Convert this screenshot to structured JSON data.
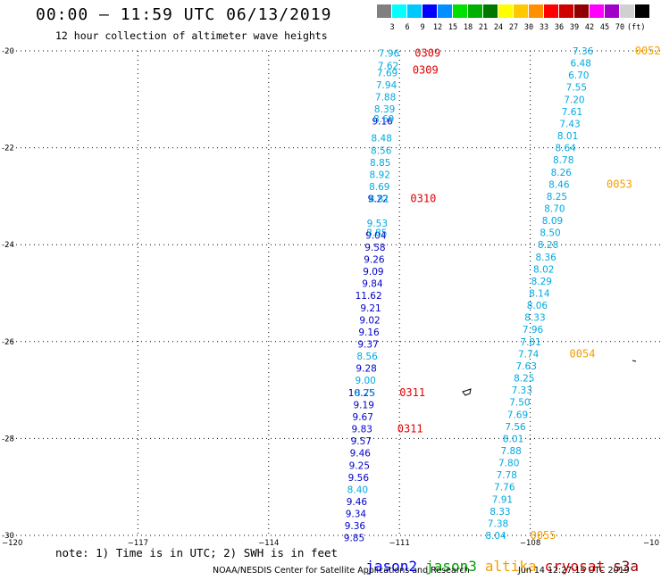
{
  "header": {
    "title": "00:00 – 11:59 UTC 06/13/2019",
    "subtitle": "12 hour collection of altimeter wave heights"
  },
  "color_scale": {
    "colors": [
      "#808080",
      "#00ffff",
      "#00c8ff",
      "#0000ff",
      "#0090ff",
      "#00e000",
      "#00b000",
      "#007800",
      "#ffff00",
      "#ffc800",
      "#ff9000",
      "#ff0000",
      "#d00000",
      "#900000",
      "#ff00ff",
      "#a000c8",
      "#d0d0d0",
      "#000000"
    ],
    "labels": [
      "3",
      "6",
      "9",
      "12",
      "15",
      "18",
      "21",
      "24",
      "27",
      "30",
      "33",
      "36",
      "39",
      "42",
      "45",
      "70",
      "(ft)"
    ]
  },
  "chart_data": {
    "type": "map",
    "xlim": [
      -120,
      -105
    ],
    "ylim": [
      -30,
      -20
    ],
    "x_ticks": [
      "−120",
      "−117",
      "−114",
      "−111",
      "−108",
      "−10"
    ],
    "y_ticks": [
      "-20",
      "-22",
      "-24",
      "-26",
      "-28",
      "-30"
    ],
    "grid": "dotted",
    "series": [
      {
        "name": "jason2",
        "color": "#0000c8",
        "points": [
          {
            "lon": -111.15,
            "lat": -21.45,
            "swh": "9.16"
          },
          {
            "lon": -111.25,
            "lat": -23.05,
            "swh": "9.22"
          },
          {
            "lon": -111.3,
            "lat": -23.8,
            "swh": "9.04"
          },
          {
            "lon": -111.32,
            "lat": -24.05,
            "swh": "9.58"
          },
          {
            "lon": -111.34,
            "lat": -24.3,
            "swh": "9.26"
          },
          {
            "lon": -111.36,
            "lat": -24.55,
            "swh": "9.09"
          },
          {
            "lon": -111.38,
            "lat": -24.8,
            "swh": "9.84"
          },
          {
            "lon": -111.4,
            "lat": -25.05,
            "swh": "11.62"
          },
          {
            "lon": -111.42,
            "lat": -25.3,
            "swh": "9.21"
          },
          {
            "lon": -111.44,
            "lat": -25.55,
            "swh": "9.02"
          },
          {
            "lon": -111.46,
            "lat": -25.8,
            "swh": "9.16"
          },
          {
            "lon": -111.48,
            "lat": -26.05,
            "swh": "9.37"
          },
          {
            "lon": -111.52,
            "lat": -26.55,
            "swh": "9.28"
          },
          {
            "lon": -111.56,
            "lat": -27.05,
            "swh": "10.25"
          },
          {
            "lon": -111.58,
            "lat": -27.3,
            "swh": "9.19"
          },
          {
            "lon": -111.6,
            "lat": -27.55,
            "swh": "9.67"
          },
          {
            "lon": -111.62,
            "lat": -27.8,
            "swh": "9.83"
          },
          {
            "lon": -111.64,
            "lat": -28.05,
            "swh": "9.57"
          },
          {
            "lon": -111.66,
            "lat": -28.3,
            "swh": "9.46"
          },
          {
            "lon": -111.68,
            "lat": -28.55,
            "swh": "9.25"
          },
          {
            "lon": -111.7,
            "lat": -28.8,
            "swh": "9.56"
          },
          {
            "lon": -111.74,
            "lat": -29.3,
            "swh": "9.46"
          },
          {
            "lon": -111.76,
            "lat": -29.55,
            "swh": "9.34"
          },
          {
            "lon": -111.78,
            "lat": -29.8,
            "swh": "9.36"
          },
          {
            "lon": -111.8,
            "lat": -30.05,
            "swh": "9.85"
          }
        ]
      },
      {
        "name": "jason2-light",
        "color": "#00a8e0",
        "points": [
          {
            "lon": -111.0,
            "lat": -20.05,
            "swh": "7.96"
          },
          {
            "lon": -111.02,
            "lat": -20.3,
            "swh": "7.62"
          },
          {
            "lon": -111.04,
            "lat": -20.45,
            "swh": "7.69"
          },
          {
            "lon": -111.06,
            "lat": -20.7,
            "swh": "7.94"
          },
          {
            "lon": -111.08,
            "lat": -20.95,
            "swh": "7.88"
          },
          {
            "lon": -111.1,
            "lat": -21.2,
            "swh": "8.39"
          },
          {
            "lon": -111.12,
            "lat": -21.4,
            "swh": "8.69"
          },
          {
            "lon": -111.17,
            "lat": -21.8,
            "swh": "8.48"
          },
          {
            "lon": -111.18,
            "lat": -22.05,
            "swh": "8.56"
          },
          {
            "lon": -111.2,
            "lat": -22.3,
            "swh": "8.85"
          },
          {
            "lon": -111.21,
            "lat": -22.55,
            "swh": "8.92"
          },
          {
            "lon": -111.22,
            "lat": -22.8,
            "swh": "8.69"
          },
          {
            "lon": -111.23,
            "lat": -23.05,
            "swh": "8.81"
          },
          {
            "lon": -111.27,
            "lat": -23.55,
            "swh": "9.53"
          },
          {
            "lon": -111.28,
            "lat": -23.75,
            "swh": "8.85"
          },
          {
            "lon": -111.5,
            "lat": -26.3,
            "swh": "8.56"
          },
          {
            "lon": -111.54,
            "lat": -26.8,
            "swh": "9.00"
          },
          {
            "lon": -111.55,
            "lat": -27.05,
            "swh": "8.75"
          },
          {
            "lon": -111.72,
            "lat": -29.05,
            "swh": "8.40"
          }
        ]
      },
      {
        "name": "altika",
        "color": "#00a8e0",
        "points": [
          {
            "lon": -106.55,
            "lat": -20.0,
            "swh": "7.36"
          },
          {
            "lon": -106.6,
            "lat": -20.25,
            "swh": "6.48"
          },
          {
            "lon": -106.65,
            "lat": -20.5,
            "swh": "6.70"
          },
          {
            "lon": -106.7,
            "lat": -20.75,
            "swh": "7.55"
          },
          {
            "lon": -106.75,
            "lat": -21.0,
            "swh": "7.20"
          },
          {
            "lon": -106.8,
            "lat": -21.25,
            "swh": "7.61"
          },
          {
            "lon": -106.85,
            "lat": -21.5,
            "swh": "7.43"
          },
          {
            "lon": -106.9,
            "lat": -21.75,
            "swh": "8.01"
          },
          {
            "lon": -106.95,
            "lat": -22.0,
            "swh": "8.64"
          },
          {
            "lon": -107.0,
            "lat": -22.25,
            "swh": "8.78"
          },
          {
            "lon": -107.05,
            "lat": -22.5,
            "swh": "8.26"
          },
          {
            "lon": -107.1,
            "lat": -22.75,
            "swh": "8.46"
          },
          {
            "lon": -107.15,
            "lat": -23.0,
            "swh": "8.25"
          },
          {
            "lon": -107.2,
            "lat": -23.25,
            "swh": "8.70"
          },
          {
            "lon": -107.25,
            "lat": -23.5,
            "swh": "8.09"
          },
          {
            "lon": -107.3,
            "lat": -23.75,
            "swh": "8.50"
          },
          {
            "lon": -107.35,
            "lat": -24.0,
            "swh": "8.28"
          },
          {
            "lon": -107.4,
            "lat": -24.25,
            "swh": "8.36"
          },
          {
            "lon": -107.45,
            "lat": -24.5,
            "swh": "8.02"
          },
          {
            "lon": -107.5,
            "lat": -24.75,
            "swh": "8.29"
          },
          {
            "lon": -107.55,
            "lat": -25.0,
            "swh": "8.14"
          },
          {
            "lon": -107.6,
            "lat": -25.25,
            "swh": "8.06"
          },
          {
            "lon": -107.65,
            "lat": -25.5,
            "swh": "8.33"
          },
          {
            "lon": -107.7,
            "lat": -25.75,
            "swh": "7.96"
          },
          {
            "lon": -107.75,
            "lat": -26.0,
            "swh": "7.81"
          },
          {
            "lon": -107.8,
            "lat": -26.25,
            "swh": "7.74"
          },
          {
            "lon": -107.85,
            "lat": -26.5,
            "swh": "7.63"
          },
          {
            "lon": -107.9,
            "lat": -26.75,
            "swh": "8.25"
          },
          {
            "lon": -107.95,
            "lat": -27.0,
            "swh": "7.33"
          },
          {
            "lon": -108.0,
            "lat": -27.25,
            "swh": "7.50"
          },
          {
            "lon": -108.05,
            "lat": -27.5,
            "swh": "7.69"
          },
          {
            "lon": -108.1,
            "lat": -27.75,
            "swh": "7.56"
          },
          {
            "lon": -108.15,
            "lat": -28.0,
            "swh": "8.01"
          },
          {
            "lon": -108.2,
            "lat": -28.25,
            "swh": "7.88"
          },
          {
            "lon": -108.25,
            "lat": -28.5,
            "swh": "7.80"
          },
          {
            "lon": -108.3,
            "lat": -28.75,
            "swh": "7.78"
          },
          {
            "lon": -108.35,
            "lat": -29.0,
            "swh": "7.76"
          },
          {
            "lon": -108.4,
            "lat": -29.25,
            "swh": "7.91"
          },
          {
            "lon": -108.45,
            "lat": -29.5,
            "swh": "8.33"
          },
          {
            "lon": -108.5,
            "lat": -29.75,
            "swh": "7.38"
          },
          {
            "lon": -108.55,
            "lat": -30.0,
            "swh": "8.04"
          }
        ]
      }
    ],
    "time_stamps": [
      {
        "lon": -110.65,
        "lat": -20.05,
        "text": "0309",
        "color": "#e00000"
      },
      {
        "lon": -110.7,
        "lat": -20.4,
        "text": "0309",
        "color": "#e00000"
      },
      {
        "lon": -110.75,
        "lat": -23.05,
        "text": "0310",
        "color": "#e00000"
      },
      {
        "lon": -111.0,
        "lat": -27.05,
        "text": "0311",
        "color": "#e00000"
      },
      {
        "lon": -111.05,
        "lat": -27.8,
        "text": "0311",
        "color": "#e00000"
      },
      {
        "lon": -105.6,
        "lat": -20.0,
        "text": "0052",
        "color": "#f0a000"
      },
      {
        "lon": -106.25,
        "lat": -22.75,
        "text": "0053",
        "color": "#f0a000"
      },
      {
        "lon": -107.1,
        "lat": -26.25,
        "text": "0054",
        "color": "#f0a000"
      },
      {
        "lon": -108.0,
        "lat": -30.0,
        "text": "0055",
        "color": "#f0a000"
      }
    ]
  },
  "footer": {
    "note": "note: 1) Time is in UTC; 2) SWH is in feet",
    "satellites": [
      {
        "name": "jason2",
        "color": "#0000ff"
      },
      {
        "name": "jason3",
        "color": "#00a000"
      },
      {
        "name": "altika",
        "color": "#f0a000"
      },
      {
        "name": "cryosat",
        "color": "#e00000"
      },
      {
        "name": "s3a",
        "color": "#900000"
      }
    ],
    "credit": "NOAA/NESDIS Center for Satellite Applications and Research",
    "generated": "Jun 14 12:27:15 UTC 2019"
  }
}
